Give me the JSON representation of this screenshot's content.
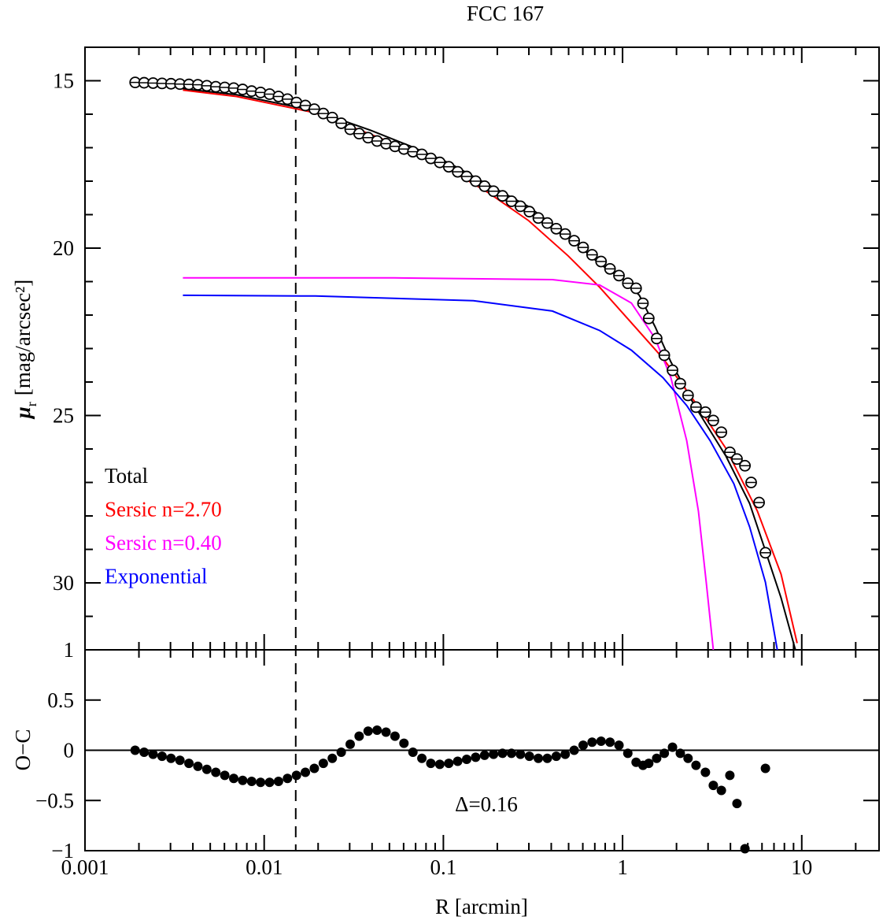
{
  "chart_data": [
    {
      "type": "scatter",
      "title": "FCC 167",
      "ylabel": "μ",
      "ylabel_sub": "r",
      "ylabel_unit": "[mag/arcsec²]",
      "x": [
        0.001905,
        0.002138,
        0.002399,
        0.002692,
        0.00302,
        0.003388,
        0.003802,
        0.004266,
        0.004786,
        0.00537,
        0.006026,
        0.006761,
        0.007586,
        0.008511,
        0.00955,
        0.01072,
        0.01202,
        0.01349,
        0.01514,
        0.01698,
        0.01905,
        0.02138,
        0.02399,
        0.02692,
        0.0302,
        0.03388,
        0.03802,
        0.04266,
        0.04786,
        0.0537,
        0.06026,
        0.06761,
        0.07586,
        0.08511,
        0.0955,
        0.1072,
        0.1202,
        0.1349,
        0.1514,
        0.1698,
        0.1905,
        0.2138,
        0.2399,
        0.2692,
        0.302,
        0.3388,
        0.3802,
        0.4266,
        0.4786,
        0.537,
        0.6026,
        0.6761,
        0.7586,
        0.8511,
        0.955,
        1.07,
        1.19,
        1.3,
        1.4,
        1.55,
        1.71,
        1.9,
        2.1,
        2.32,
        2.57,
        2.9,
        3.21,
        3.56,
        3.97,
        4.35,
        4.82,
        5.22,
        5.78,
        6.27
      ],
      "values": [
        15.05,
        15.06,
        15.07,
        15.08,
        15.09,
        15.1,
        15.11,
        15.12,
        15.15,
        15.18,
        15.2,
        15.22,
        15.26,
        15.31,
        15.35,
        15.4,
        15.47,
        15.55,
        15.65,
        15.74,
        15.85,
        15.98,
        16.1,
        16.27,
        16.45,
        16.58,
        16.7,
        16.8,
        16.88,
        16.96,
        17.04,
        17.12,
        17.2,
        17.32,
        17.44,
        17.57,
        17.72,
        17.86,
        18.0,
        18.15,
        18.3,
        18.44,
        18.6,
        18.75,
        18.91,
        19.1,
        19.25,
        19.42,
        19.58,
        19.78,
        19.98,
        20.2,
        20.4,
        20.62,
        20.82,
        21.05,
        21.2,
        21.65,
        22.1,
        22.7,
        23.2,
        23.65,
        24.05,
        24.4,
        24.75,
        24.9,
        25.15,
        25.5,
        26.1,
        26.3,
        26.5,
        27.0,
        27.6,
        29.1
      ],
      "color": "#000000",
      "lines": [
        {
          "name": "Total",
          "color": "#000000",
          "x": [
            0.00352,
            0.00701,
            0.0193,
            0.0393,
            0.0653,
            0.108,
            0.18,
            0.299,
            0.497,
            0.745,
            1.01,
            1.24,
            1.52,
            1.86,
            2.52,
            3.78,
            5.12,
            6.27,
            7.67,
            9.22
          ],
          "values": [
            15.24,
            15.42,
            15.9,
            16.48,
            16.95,
            17.46,
            18.12,
            18.76,
            19.65,
            20.47,
            20.94,
            21.41,
            22.35,
            23.4,
            24.7,
            26.22,
            27.63,
            29.04,
            30.45,
            32
          ]
        },
        {
          "name": "Sersic n=2.70",
          "color": "#ff0000",
          "x": [
            0.00352,
            0.00701,
            0.0193,
            0.0393,
            0.0653,
            0.108,
            0.18,
            0.299,
            0.497,
            0.745,
            1.12,
            1.68,
            2.52,
            3.78,
            5.66,
            7.67,
            9.42
          ],
          "values": [
            15.28,
            15.47,
            15.96,
            16.6,
            17.07,
            17.65,
            18.36,
            19.18,
            20.23,
            21.17,
            22.23,
            23.29,
            24.58,
            25.99,
            27.86,
            29.74,
            31.8
          ]
        },
        {
          "name": "Sersic n=0.40",
          "color": "#ff00ff",
          "x": [
            0.00352,
            0.0533,
            0.406,
            0.745,
            1.12,
            1.52,
            1.86,
            2.28,
            2.65,
            2.93,
            3.21
          ],
          "values": [
            20.89,
            20.89,
            20.94,
            21.1,
            21.64,
            22.7,
            23.87,
            25.75,
            27.86,
            29.98,
            32
          ]
        },
        {
          "name": "Exponential",
          "color": "#0000ff",
          "x": [
            0.00352,
            0.0193,
            0.147,
            0.406,
            0.745,
            1.12,
            1.68,
            2.28,
            3.08,
            4.18,
            5.12,
            6.27,
            7.3
          ],
          "values": [
            21.41,
            21.43,
            21.57,
            21.88,
            22.46,
            23.05,
            23.87,
            24.7,
            25.75,
            27.04,
            28.33,
            29.98,
            32
          ]
        }
      ],
      "ylim": [
        14,
        32
      ],
      "y_inverted": true,
      "yticks": [
        15,
        20,
        25,
        30
      ],
      "yminor": [
        16,
        17,
        18,
        19,
        21,
        22,
        23,
        24,
        26,
        27,
        28,
        29,
        31
      ],
      "vline": 0.015,
      "legend_corner": "lower left"
    },
    {
      "type": "scatter",
      "ylabel": "O−C",
      "xlabel": "R [arcmin]",
      "annotation": "Δ=0.16",
      "values": [
        0.0,
        -0.02,
        -0.04,
        -0.06,
        -0.08,
        -0.1,
        -0.13,
        -0.16,
        -0.19,
        -0.22,
        -0.25,
        -0.28,
        -0.3,
        -0.31,
        -0.32,
        -0.32,
        -0.31,
        -0.28,
        -0.25,
        -0.22,
        -0.18,
        -0.13,
        -0.08,
        -0.02,
        0.06,
        0.14,
        0.19,
        0.2,
        0.18,
        0.14,
        0.07,
        -0.02,
        -0.08,
        -0.13,
        -0.14,
        -0.13,
        -0.11,
        -0.09,
        -0.07,
        -0.05,
        -0.04,
        -0.03,
        -0.03,
        -0.04,
        -0.06,
        -0.08,
        -0.08,
        -0.06,
        -0.04,
        0.0,
        0.05,
        0.08,
        0.09,
        0.08,
        0.05,
        -0.03,
        -0.12,
        -0.15,
        -0.13,
        -0.08,
        -0.03,
        0.03,
        -0.03,
        -0.08,
        -0.15,
        -0.22,
        -0.35,
        -0.4,
        -0.25,
        -0.53,
        -0.98,
        null,
        null,
        -0.18
      ],
      "color": "#000000",
      "ylim": [
        -1,
        1
      ],
      "yticks": [
        {
          "value": -1,
          "label": "−1"
        },
        {
          "value": -0.5,
          "label": "−0.5"
        },
        0,
        0.5,
        1
      ],
      "hline": 0,
      "xscale": "log",
      "xlim": [
        0.001,
        27
      ],
      "xticks": [
        0.001,
        0.01,
        0.1,
        1,
        10
      ],
      "xminor": [
        0.002,
        0.003,
        0.004,
        0.005,
        0.006,
        0.007,
        0.008,
        0.009,
        0.02,
        0.03,
        0.04,
        0.05,
        0.06,
        0.07,
        0.08,
        0.09,
        0.2,
        0.3,
        0.4,
        0.5,
        0.6,
        0.7,
        0.8,
        0.9,
        2,
        3,
        4,
        5,
        6,
        7,
        8,
        9,
        20
      ]
    }
  ]
}
